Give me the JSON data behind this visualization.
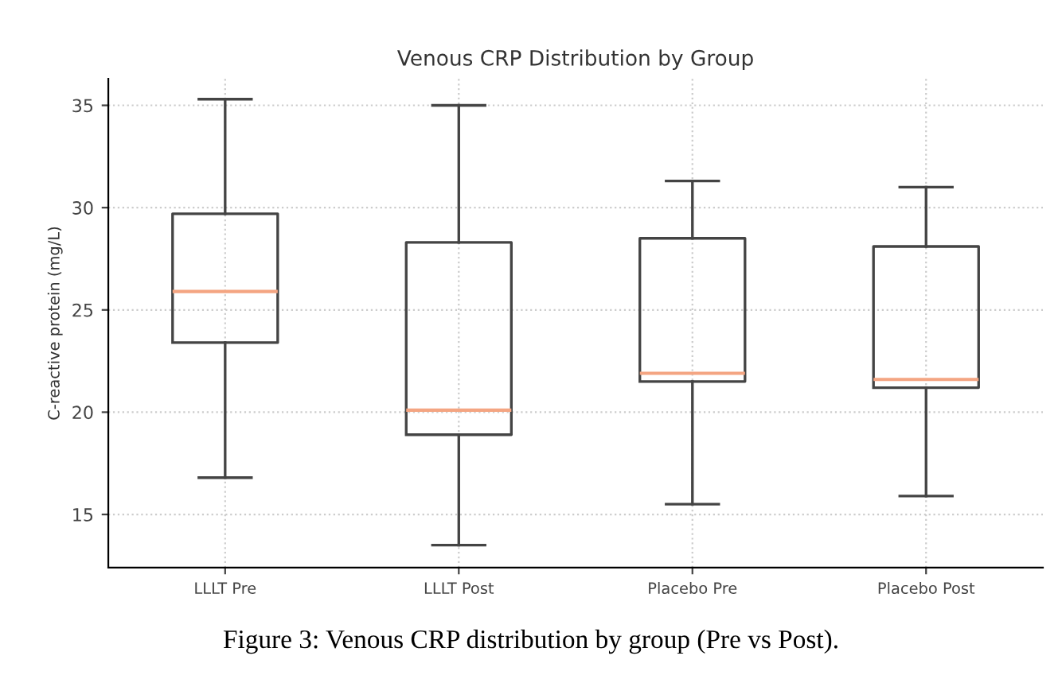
{
  "chart_data": {
    "type": "box",
    "title": "Venous CRP Distribution by Group",
    "ylabel": "C-reactive protein (mg/L)",
    "categories": [
      "LLLT Pre",
      "LLLT Post",
      "Placebo Pre",
      "Placebo Post"
    ],
    "boxes": [
      {
        "low": 16.8,
        "q1": 23.4,
        "median": 25.9,
        "q3": 29.7,
        "high": 35.3
      },
      {
        "low": 13.5,
        "q1": 18.9,
        "median": 20.1,
        "q3": 28.3,
        "high": 35.0
      },
      {
        "low": 15.5,
        "q1": 21.5,
        "median": 21.9,
        "q3": 28.5,
        "high": 31.3
      },
      {
        "low": 15.9,
        "q1": 21.2,
        "median": 21.6,
        "q3": 28.1,
        "high": 31.0
      }
    ],
    "color": "#444444",
    "ylim": [
      12.4,
      36.3
    ],
    "yticks": [
      15,
      20,
      25,
      30,
      35
    ],
    "grid": true,
    "annotations": [
      "Figure 3: Venous CRP distribution by group (Pre vs Post)."
    ]
  }
}
